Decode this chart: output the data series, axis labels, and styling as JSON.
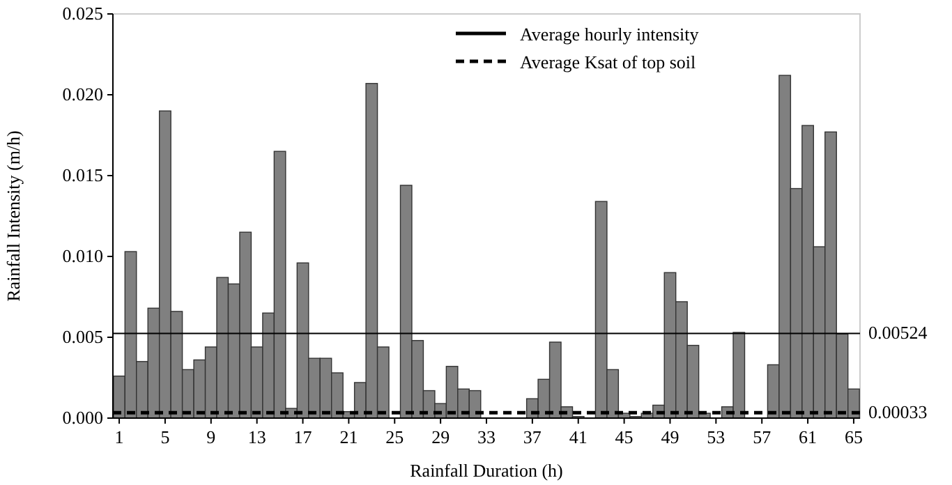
{
  "chart_data": {
    "type": "bar",
    "xlabel": "Rainfall Duration (h)",
    "ylabel": "Rainfall Intensity (m/h)",
    "categories": [
      "1",
      null,
      null,
      null,
      "5",
      null,
      null,
      null,
      "9",
      null,
      null,
      null,
      "13",
      null,
      null,
      null,
      "17",
      null,
      null,
      null,
      "21",
      null,
      null,
      null,
      "25",
      null,
      null,
      null,
      "29",
      null,
      null,
      null,
      "33",
      null,
      null,
      null,
      "37",
      null,
      null,
      null,
      "41",
      null,
      null,
      null,
      "45",
      null,
      null,
      null,
      "49",
      null,
      null,
      null,
      "53",
      null,
      null,
      null,
      "57",
      null,
      null,
      null,
      "61",
      null,
      null,
      null,
      "65"
    ],
    "values": [
      0.0026,
      0.0103,
      0.0035,
      0.0068,
      0.019,
      0.0066,
      0.003,
      0.0036,
      0.0044,
      0.0087,
      0.0083,
      0.0115,
      0.0044,
      0.0065,
      0.0165,
      0.0006,
      0.0096,
      0.0037,
      0.0037,
      0.0028,
      0.0004,
      0.0022,
      0.0207,
      0.0044,
      0,
      0.0144,
      0.0048,
      0.0017,
      0.0009,
      0.0032,
      0.0018,
      0.0017,
      0,
      0,
      0,
      0,
      0.0012,
      0.0024,
      0.0047,
      0.0007,
      0.0001,
      0,
      0.0134,
      0.003,
      0.0003,
      0.0001,
      0.0003,
      0.0008,
      0.009,
      0.0072,
      0.0045,
      0.0003,
      0,
      0.0007,
      0.0053,
      0,
      0,
      0.0033,
      0.0212,
      0.0142,
      0.0181,
      0.0106,
      0.0177,
      0.0052,
      0.0018
    ],
    "color": "#808080",
    "ylim": [
      0,
      0.025
    ],
    "yticks": [
      {
        "value": 0,
        "label": "0.000"
      },
      {
        "value": 0.005,
        "label": "0.005"
      },
      {
        "value": 0.01,
        "label": "0.010"
      },
      {
        "value": 0.015,
        "label": "0.015"
      },
      {
        "value": 0.02,
        "label": "0.020"
      },
      {
        "value": 0.025,
        "label": "0.025"
      }
    ],
    "ref_lines": [
      {
        "axis": "y",
        "value": 0.00524,
        "label": "Average hourly intensity",
        "line_style": "solid",
        "color": "#000000"
      },
      {
        "axis": "y",
        "value": 0.00033,
        "label": "Average Ksat of top soil",
        "line_style": "dashed",
        "color": "#000000"
      }
    ],
    "annotations": [
      "0.00524",
      "0.00033"
    ],
    "grid": false,
    "legend": "top right"
  }
}
